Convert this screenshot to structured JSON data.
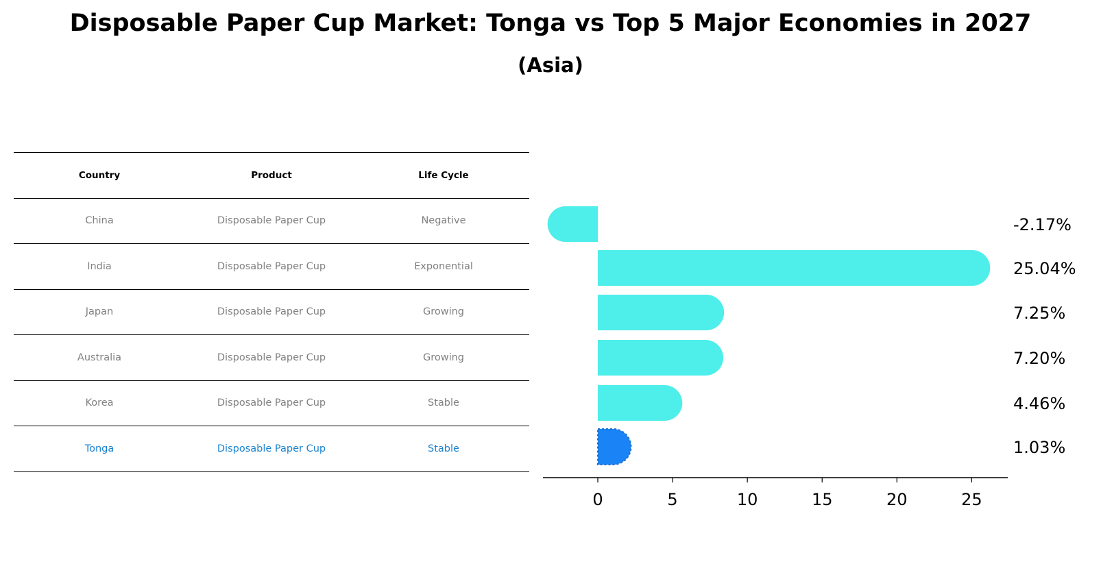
{
  "colors": {
    "bar": "#4eeeea",
    "highlight_bar": "#1a83f5",
    "highlight_text": "#1a83cf",
    "muted_text": "#808080"
  },
  "table": {
    "headers": [
      "Country",
      "Product",
      "Life Cycle"
    ],
    "rows": [
      {
        "country": "China",
        "product": "Disposable Paper Cup",
        "life_cycle": "Negative"
      },
      {
        "country": "India",
        "product": "Disposable Paper Cup",
        "life_cycle": "Exponential"
      },
      {
        "country": "Japan",
        "product": "Disposable Paper Cup",
        "life_cycle": "Growing"
      },
      {
        "country": "Australia",
        "product": "Disposable Paper Cup",
        "life_cycle": "Growing"
      },
      {
        "country": "Korea",
        "product": "Disposable Paper Cup",
        "life_cycle": "Stable"
      },
      {
        "country": "Tonga",
        "product": "Disposable Paper Cup",
        "life_cycle": "Stable"
      }
    ]
  },
  "chart_data": {
    "type": "bar",
    "orientation": "horizontal",
    "title": "Disposable Paper Cup Market: Tonga vs Top 5 Major Economies in 2027",
    "subtitle": "(Asia)",
    "categories": [
      "China",
      "India",
      "Japan",
      "Australia",
      "Korea",
      "Tonga"
    ],
    "values": [
      -2.17,
      25.04,
      7.25,
      7.2,
      4.46,
      1.03
    ],
    "value_labels": [
      "-2.17%",
      "25.04%",
      "7.25%",
      "7.20%",
      "4.46%",
      "1.03%"
    ],
    "highlight": "Tonga",
    "xlim": [
      -3.5,
      26.5
    ],
    "xticks": [
      0,
      5,
      10,
      15,
      20,
      25
    ],
    "xlabel": "",
    "ylabel": "",
    "grid": false
  }
}
